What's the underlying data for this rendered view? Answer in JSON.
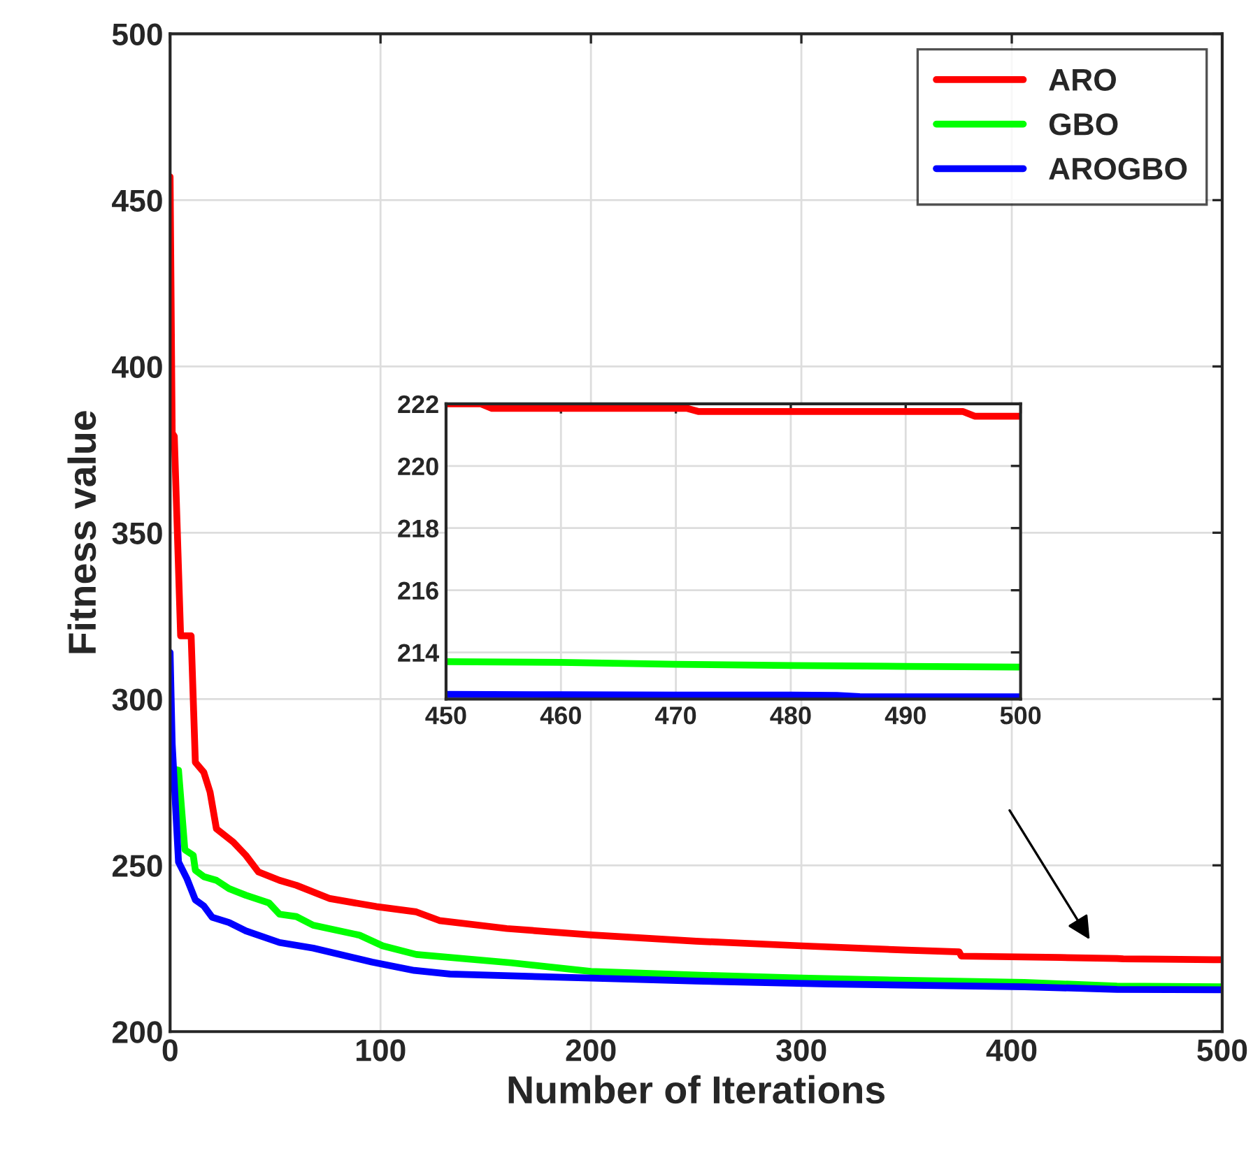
{
  "chart_data": [
    {
      "type": "line",
      "xlabel": "Number of Iterations",
      "ylabel": "Fitness value",
      "xlim": [
        0,
        500
      ],
      "ylim": [
        200,
        500
      ],
      "xticks": [
        0,
        100,
        200,
        300,
        400,
        500
      ],
      "yticks": [
        200,
        250,
        300,
        350,
        400,
        450,
        500
      ],
      "grid": true,
      "legend": "top right",
      "series": [
        {
          "name": "ARO",
          "color": "#ff0000",
          "x": [
            0,
            1,
            2,
            5,
            10,
            12,
            16,
            19,
            22,
            30,
            36,
            42,
            52,
            60,
            76,
            98,
            117,
            128,
            160,
            200,
            250,
            300,
            350,
            375,
            376,
            423,
            450,
            453,
            472,
            496,
            500
          ],
          "values": [
            457,
            380,
            379,
            319,
            319,
            281,
            278,
            272,
            261,
            257,
            253,
            248,
            245.5,
            244,
            240,
            237.6,
            236,
            233.4,
            231,
            229.1,
            227.2,
            225.8,
            224.5,
            224,
            222.7,
            222.3,
            222,
            221.9,
            221.8,
            221.6,
            221.6
          ]
        },
        {
          "name": "GBO",
          "color": "#00ff00",
          "x": [
            1,
            4,
            7,
            11,
            12,
            16,
            22,
            28,
            36,
            47,
            52,
            60,
            68,
            90,
            101,
            117,
            162,
            200,
            250,
            300,
            350,
            406,
            450,
            500
          ],
          "values": [
            279,
            278.6,
            254.7,
            253,
            248.5,
            246.6,
            245.5,
            243,
            241,
            238.7,
            235.3,
            234.6,
            232,
            229,
            225.8,
            223.2,
            220.7,
            218.1,
            217,
            216.1,
            215.4,
            214.8,
            213.7,
            213.5
          ]
        },
        {
          "name": "AROGBO",
          "color": "#0000ff",
          "x": [
            0,
            1,
            4,
            8,
            12,
            16,
            20,
            28,
            36,
            52,
            68,
            96,
            116,
            133,
            200,
            250,
            313,
            406,
            450,
            500
          ],
          "values": [
            314,
            286.5,
            251,
            246,
            239.6,
            237.8,
            234.4,
            232.8,
            230.3,
            226.8,
            225.1,
            220.9,
            218.4,
            217.3,
            216.1,
            215.2,
            214.3,
            213.5,
            212.7,
            212.6
          ]
        }
      ]
    },
    {
      "type": "line",
      "xlim": [
        450,
        500
      ],
      "ylim": [
        212.5,
        222
      ],
      "xticks": [
        450,
        460,
        470,
        480,
        490,
        500
      ],
      "yticks": [
        214,
        216,
        218,
        220,
        222
      ],
      "grid": true,
      "series": [
        {
          "color": "#ff0000",
          "x": [
            450,
            453,
            454,
            471,
            472,
            495,
            496,
            500
          ],
          "values": [
            222,
            222,
            221.85,
            221.85,
            221.75,
            221.75,
            221.6,
            221.6
          ]
        },
        {
          "color": "#00ff00",
          "x": [
            450,
            460,
            470,
            480,
            490,
            500
          ],
          "values": [
            213.7,
            213.68,
            213.62,
            213.58,
            213.55,
            213.53
          ]
        },
        {
          "color": "#0000ff",
          "x": [
            450,
            460,
            470,
            480,
            484,
            486,
            490,
            500
          ],
          "values": [
            212.65,
            212.64,
            212.63,
            212.63,
            212.62,
            212.58,
            212.57,
            212.57
          ]
        }
      ]
    }
  ]
}
